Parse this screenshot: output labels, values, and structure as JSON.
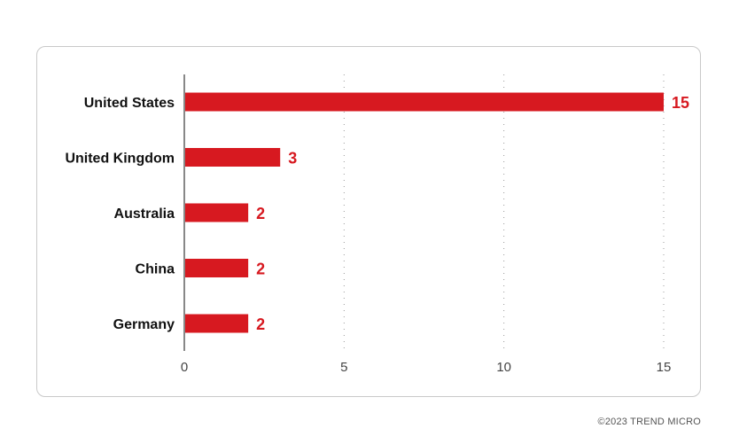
{
  "chart_data": {
    "type": "bar",
    "orientation": "horizontal",
    "categories": [
      "United States",
      "United Kingdom",
      "Australia",
      "China",
      "Germany"
    ],
    "values": [
      15,
      3,
      2,
      2,
      2
    ],
    "title": "",
    "xlabel": "",
    "ylabel": "",
    "xlim": [
      0,
      15
    ],
    "xticks": [
      0,
      5,
      10,
      15
    ],
    "grid": "vertical-dotted",
    "legend": "none",
    "bar_color": "#d71920",
    "value_label_color": "#d71920"
  },
  "footer": {
    "copyright": "©2023 TREND MICRO"
  }
}
